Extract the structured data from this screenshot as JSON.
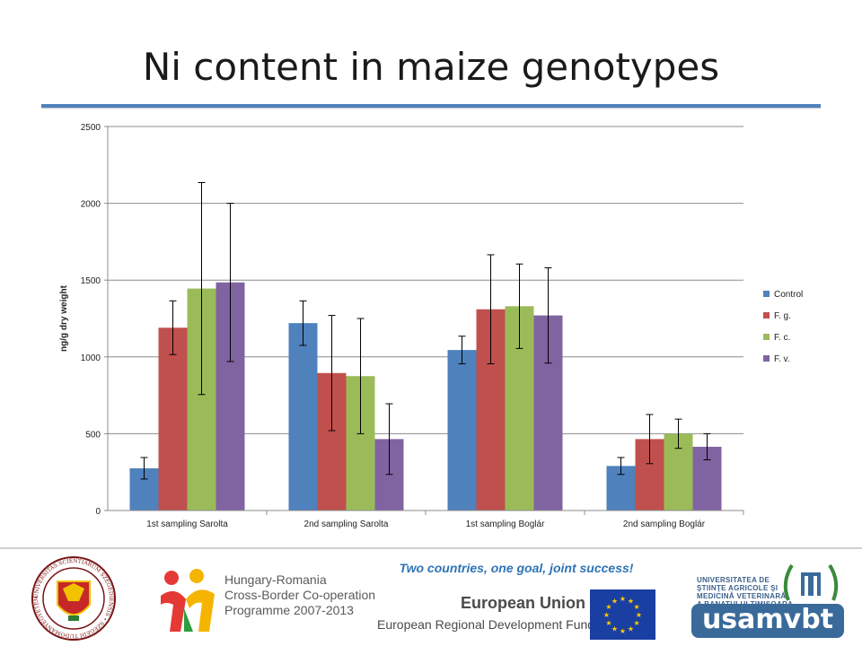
{
  "slide": {
    "title": "Ni content in maize genotypes",
    "accent_color": "#4f81bd"
  },
  "chart_data": {
    "type": "bar",
    "title": "",
    "xlabel": "",
    "ylabel": "ng/g dry weight",
    "ylim": [
      0,
      2500
    ],
    "yticks": [
      0,
      500,
      1000,
      1500,
      2000,
      2500
    ],
    "grid": true,
    "legend_position": "right",
    "categories": [
      "1st sampling Sarolta",
      "2nd sampling Sarolta",
      "1st sampling Boglár",
      "2nd sampling Boglár"
    ],
    "series": [
      {
        "name": "Control",
        "color": "#4f81bd",
        "values": [
          275,
          1220,
          1045,
          290
        ],
        "errors": [
          70,
          145,
          90,
          55
        ]
      },
      {
        "name": "F. g.",
        "color": "#c0504d",
        "values": [
          1190,
          895,
          1310,
          465
        ],
        "errors": [
          175,
          375,
          355,
          160
        ]
      },
      {
        "name": "F. c.",
        "color": "#9bbb59",
        "values": [
          1445,
          875,
          1330,
          500
        ],
        "errors": [
          690,
          375,
          275,
          95
        ]
      },
      {
        "name": "F. v.",
        "color": "#8064a2",
        "values": [
          1485,
          465,
          1270,
          415
        ],
        "errors": [
          515,
          230,
          310,
          85
        ]
      }
    ]
  },
  "footer": {
    "slogan": "Two countries, one goal, joint success!",
    "left_seal_text": "UNIVERSITAS SCIENTIARUM SZEGEDIENSIS • SZEGEDI TUDOMÁNYEGYETEM •",
    "programme_lines": [
      "Hungary-Romania",
      "Cross-Border Co-operation",
      "Programme 2007-2013"
    ],
    "eu_title": "European Union",
    "eu_subtitle": "European Regional Development Fund",
    "usam_lines": [
      "UNIVERSITATEA DE",
      "ŞTIINŢE AGRICOLE ŞI",
      "MEDICINĂ VETERINARĂ",
      "A BANATULUI TIMIŞOARA"
    ],
    "usam_wordmark": "usamvbt"
  }
}
